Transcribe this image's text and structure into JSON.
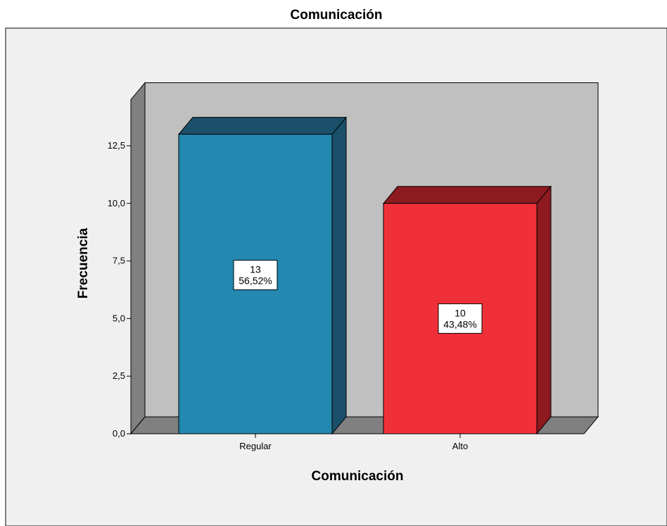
{
  "chart_data": {
    "type": "bar",
    "title": "Comunicación",
    "xlabel": "Comunicación",
    "ylabel": "Frecuencia",
    "categories": [
      "Regular",
      "Alto"
    ],
    "values": [
      13,
      10
    ],
    "data_labels": [
      {
        "count": "13",
        "percent": "56,52%"
      },
      {
        "count": "10",
        "percent": "43,48%"
      }
    ],
    "ylim": [
      0,
      14.5
    ],
    "yticks": [
      0,
      2.5,
      5,
      7.5,
      10,
      12.5
    ],
    "ytick_labels": [
      "0,0",
      "2,5",
      "5,0",
      "7,5",
      "10,0",
      "12,5"
    ],
    "grid": false,
    "legend": "none",
    "three_d": true
  },
  "colors": {
    "outer_background": "#f0f0f0",
    "plot_back_wall": "#c0c0c0",
    "floor_wall": "#808080",
    "bar_regular_front": "#2389b0",
    "bar_regular_dark": "#1a5069",
    "bar_alto_front": "#f03039",
    "bar_alto_dark": "#8c1a1e"
  }
}
